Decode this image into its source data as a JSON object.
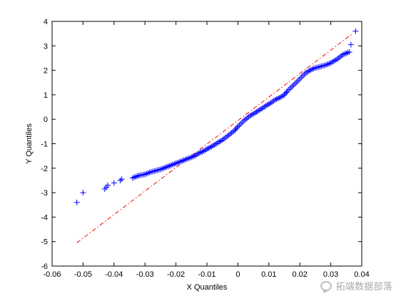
{
  "chart_data": {
    "type": "scatter",
    "title": "",
    "xlabel": "X Quantiles",
    "ylabel": "Y Quantiles",
    "xlim": [
      -0.06,
      0.04
    ],
    "ylim": [
      -6,
      4
    ],
    "xticks": [
      -0.06,
      -0.05,
      -0.04,
      -0.03,
      -0.02,
      -0.01,
      0,
      0.01,
      0.02,
      0.03,
      0.04
    ],
    "xtick_labels": [
      "-0.06",
      "-0.05",
      "-0.04",
      "-0.03",
      "-0.02",
      "-0.01",
      "0",
      "0.01",
      "0.02",
      "0.03",
      "0.04"
    ],
    "yticks": [
      -6,
      -5,
      -4,
      -3,
      -2,
      -1,
      0,
      1,
      2,
      3,
      4
    ],
    "ytick_labels": [
      "-6",
      "-5",
      "-4",
      "-3",
      "-2",
      "-1",
      "0",
      "1",
      "2",
      "3",
      "4"
    ],
    "grid": false,
    "marker": "+",
    "marker_color": "#0000ff",
    "reference_line": {
      "style": "dash-dot",
      "color": "#ff0000",
      "points": [
        [
          -0.052,
          -5.05
        ],
        [
          0.037,
          3.5
        ]
      ]
    },
    "series": [
      {
        "points": [
          [
            -0.052,
            -3.4
          ],
          [
            -0.05,
            -3.0
          ],
          [
            -0.043,
            -2.85
          ],
          [
            -0.0425,
            -2.78
          ],
          [
            -0.042,
            -2.7
          ],
          [
            -0.04,
            -2.6
          ],
          [
            -0.038,
            -2.5
          ],
          [
            -0.0375,
            -2.45
          ],
          [
            -0.034,
            -2.4
          ],
          [
            -0.033,
            -2.35
          ],
          [
            -0.032,
            -2.3
          ],
          [
            -0.03,
            -2.25
          ],
          [
            -0.029,
            -2.2
          ],
          [
            -0.028,
            -2.15
          ],
          [
            -0.027,
            -2.12
          ],
          [
            -0.026,
            -2.08
          ],
          [
            -0.025,
            -2.05
          ],
          [
            -0.024,
            -2.0
          ],
          [
            -0.023,
            -1.95
          ],
          [
            -0.022,
            -1.9
          ],
          [
            -0.021,
            -1.85
          ],
          [
            -0.02,
            -1.8
          ],
          [
            -0.019,
            -1.75
          ],
          [
            -0.018,
            -1.7
          ],
          [
            -0.017,
            -1.65
          ],
          [
            -0.016,
            -1.6
          ],
          [
            -0.015,
            -1.55
          ],
          [
            -0.014,
            -1.5
          ],
          [
            -0.013,
            -1.42
          ],
          [
            -0.012,
            -1.35
          ],
          [
            -0.011,
            -1.3
          ],
          [
            -0.01,
            -1.22
          ],
          [
            -0.009,
            -1.15
          ],
          [
            -0.008,
            -1.08
          ],
          [
            -0.007,
            -1.0
          ],
          [
            -0.006,
            -0.92
          ],
          [
            -0.005,
            -0.85
          ],
          [
            -0.004,
            -0.75
          ],
          [
            -0.003,
            -0.65
          ],
          [
            -0.002,
            -0.55
          ],
          [
            -0.001,
            -0.45
          ],
          [
            0.0,
            -0.3
          ],
          [
            0.001,
            -0.18
          ],
          [
            0.002,
            -0.05
          ],
          [
            0.003,
            0.05
          ],
          [
            0.004,
            0.15
          ],
          [
            0.005,
            0.22
          ],
          [
            0.006,
            0.3
          ],
          [
            0.007,
            0.38
          ],
          [
            0.008,
            0.46
          ],
          [
            0.009,
            0.55
          ],
          [
            0.01,
            0.62
          ],
          [
            0.011,
            0.7
          ],
          [
            0.012,
            0.8
          ],
          [
            0.013,
            0.85
          ],
          [
            0.014,
            0.92
          ],
          [
            0.015,
            1.0
          ],
          [
            0.016,
            1.15
          ],
          [
            0.017,
            1.28
          ],
          [
            0.018,
            1.4
          ],
          [
            0.019,
            1.52
          ],
          [
            0.02,
            1.65
          ],
          [
            0.021,
            1.78
          ],
          [
            0.022,
            1.9
          ],
          [
            0.023,
            1.98
          ],
          [
            0.024,
            2.05
          ],
          [
            0.025,
            2.1
          ],
          [
            0.026,
            2.13
          ],
          [
            0.027,
            2.17
          ],
          [
            0.028,
            2.2
          ],
          [
            0.029,
            2.25
          ],
          [
            0.03,
            2.3
          ],
          [
            0.031,
            2.38
          ],
          [
            0.032,
            2.45
          ],
          [
            0.033,
            2.55
          ],
          [
            0.0335,
            2.6
          ],
          [
            0.034,
            2.65
          ],
          [
            0.036,
            2.75
          ],
          [
            0.0365,
            3.05
          ],
          [
            0.038,
            3.6
          ]
        ]
      }
    ]
  },
  "watermark": {
    "text": "拓端数据部落"
  }
}
